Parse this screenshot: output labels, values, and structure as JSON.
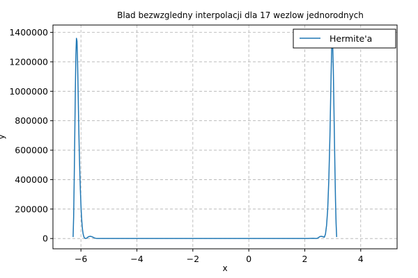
{
  "chart_data": {
    "type": "line",
    "title": "Blad bezwzgledny interpolacji dla 17 wezlow jednorodnych",
    "xlabel": "x",
    "ylabel": "y",
    "xlim": [
      -7,
      5.3
    ],
    "ylim": [
      -70000,
      1450000
    ],
    "xticks": [
      -6,
      -4,
      -2,
      0,
      2,
      4
    ],
    "xtick_labels": [
      "−6",
      "−4",
      "−2",
      "0",
      "2",
      "4"
    ],
    "yticks": [
      0,
      200000,
      400000,
      600000,
      800000,
      1000000,
      1200000,
      1400000
    ],
    "ytick_labels": [
      "0",
      "200000",
      "400000",
      "600000",
      "800000",
      "1000000",
      "1200000",
      "1400000"
    ],
    "grid": true,
    "grid_style": "dashed",
    "legend_position": "top-right",
    "series": [
      {
        "name": "Hermite'a",
        "color": "#1f77b4",
        "x": [
          -6.28,
          -6.26,
          -6.24,
          -6.22,
          -6.2,
          -6.18,
          -6.16,
          -6.14,
          -6.12,
          -6.1,
          -6.08,
          -6.06,
          -6.04,
          -6.02,
          -6.0,
          -5.98,
          -5.96,
          -5.94,
          -5.92,
          -5.9,
          -5.88,
          -5.85,
          -5.82,
          -5.79,
          -5.76,
          -5.73,
          -5.7,
          -5.66,
          -5.62,
          -5.58,
          -5.54,
          -5.5,
          -5.46,
          -5.42,
          -5.38,
          -5.3,
          -5.2,
          -5.0,
          -4.5,
          -4.0,
          -3.0,
          -2.0,
          -1.0,
          0.0,
          1.0,
          1.8,
          2.0,
          2.1,
          2.2,
          2.3,
          2.35,
          2.4,
          2.45,
          2.5,
          2.55,
          2.6,
          2.65,
          2.7,
          2.74,
          2.78,
          2.82,
          2.86,
          2.9,
          2.94,
          2.96,
          2.98,
          3.0,
          3.02,
          3.04,
          3.06,
          3.08,
          3.1,
          3.12,
          3.14
        ],
        "y": [
          10000,
          150000,
          400000,
          700000,
          1000000,
          1250000,
          1360000,
          1340000,
          1200000,
          1000000,
          780000,
          600000,
          450000,
          330000,
          230000,
          150000,
          95000,
          55000,
          30000,
          15000,
          6000,
          1000,
          500,
          3000,
          8000,
          12000,
          14000,
          15000,
          13000,
          10000,
          6000,
          3000,
          1000,
          400,
          100,
          50,
          0,
          0,
          0,
          0,
          0,
          0,
          0,
          0,
          0,
          0,
          50,
          300,
          1000,
          1500,
          800,
          300,
          1500,
          8000,
          14000,
          15000,
          12000,
          9000,
          30000,
          90000,
          200000,
          400000,
          700000,
          1100000,
          1280000,
          1340000,
          1300000,
          1150000,
          920000,
          680000,
          450000,
          250000,
          100000,
          10000
        ]
      }
    ]
  }
}
